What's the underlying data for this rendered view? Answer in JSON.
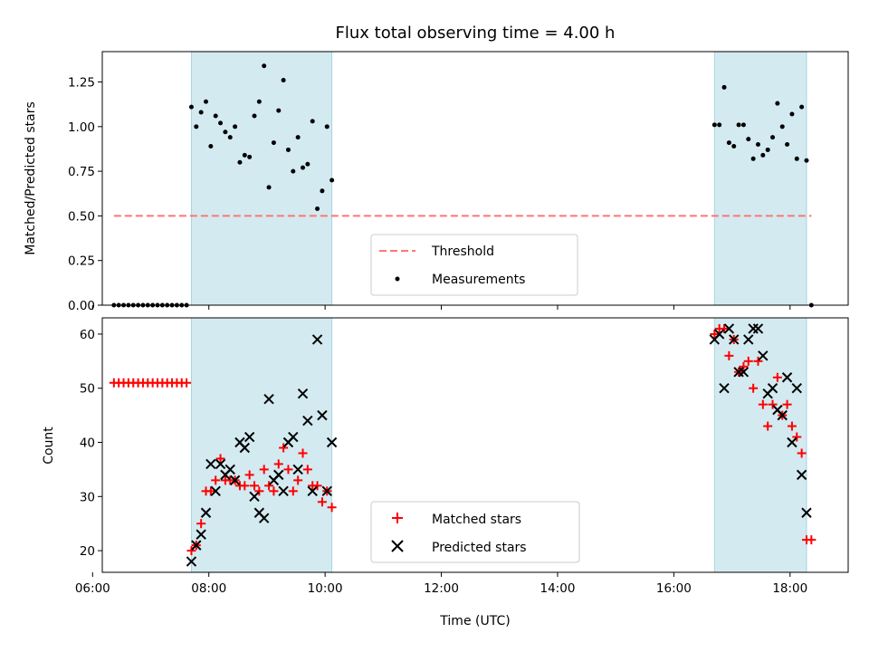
{
  "chart_data": [
    {
      "type": "scatter",
      "title": "Flux total observing time = 4.00 h",
      "ylabel": "Matched/Predicted stars",
      "xlabel": "",
      "xlim": [
        "06:10",
        "19:00"
      ],
      "ylim": [
        0,
        1.42
      ],
      "yticks": [
        0.0,
        0.25,
        0.5,
        0.75,
        1.0,
        1.25
      ],
      "ytick_labels": [
        "0.00",
        "0.25",
        "0.50",
        "0.75",
        "1.00",
        "1.25"
      ],
      "shaded_spans": [
        [
          "07:42",
          "10:07"
        ],
        [
          "16:42",
          "18:17"
        ]
      ],
      "span_color": "#d3eaf1",
      "threshold": {
        "name": "Threshold",
        "y": 0.5,
        "x_range": [
          "06:22",
          "18:22"
        ],
        "color": "#ff7575"
      },
      "legend": [
        "Threshold",
        "Measurements"
      ],
      "legend_position": "bottom-center",
      "series": [
        {
          "name": "Measurements",
          "color": "#000000",
          "points": [
            [
              "06:22",
              0
            ],
            [
              "06:27",
              0
            ],
            [
              "06:32",
              0
            ],
            [
              "06:37",
              0
            ],
            [
              "06:42",
              0
            ],
            [
              "06:47",
              0
            ],
            [
              "06:52",
              0
            ],
            [
              "06:57",
              0
            ],
            [
              "07:02",
              0
            ],
            [
              "07:07",
              0
            ],
            [
              "07:12",
              0
            ],
            [
              "07:17",
              0
            ],
            [
              "07:22",
              0
            ],
            [
              "07:27",
              0
            ],
            [
              "07:32",
              0
            ],
            [
              "07:37",
              0
            ],
            [
              "07:42",
              1.11
            ],
            [
              "07:47",
              1.0
            ],
            [
              "07:52",
              1.08
            ],
            [
              "07:57",
              1.14
            ],
            [
              "08:02",
              0.89
            ],
            [
              "08:07",
              1.06
            ],
            [
              "08:12",
              1.02
            ],
            [
              "08:17",
              0.97
            ],
            [
              "08:22",
              0.94
            ],
            [
              "08:27",
              1.0
            ],
            [
              "08:32",
              0.8
            ],
            [
              "08:37",
              0.84
            ],
            [
              "08:42",
              0.83
            ],
            [
              "08:47",
              1.06
            ],
            [
              "08:52",
              1.14
            ],
            [
              "08:57",
              1.34
            ],
            [
              "09:02",
              0.66
            ],
            [
              "09:07",
              0.91
            ],
            [
              "09:12",
              1.09
            ],
            [
              "09:17",
              1.26
            ],
            [
              "09:22",
              0.87
            ],
            [
              "09:27",
              0.75
            ],
            [
              "09:32",
              0.94
            ],
            [
              "09:37",
              0.77
            ],
            [
              "09:42",
              0.79
            ],
            [
              "09:47",
              1.03
            ],
            [
              "09:52",
              0.54
            ],
            [
              "09:57",
              0.64
            ],
            [
              "10:02",
              1.0
            ],
            [
              "10:07",
              0.7
            ],
            [
              "16:42",
              1.01
            ],
            [
              "16:47",
              1.01
            ],
            [
              "16:52",
              1.22
            ],
            [
              "16:57",
              0.91
            ],
            [
              "17:02",
              0.89
            ],
            [
              "17:07",
              1.01
            ],
            [
              "17:12",
              1.01
            ],
            [
              "17:17",
              0.93
            ],
            [
              "17:22",
              0.82
            ],
            [
              "17:27",
              0.9
            ],
            [
              "17:32",
              0.84
            ],
            [
              "17:37",
              0.87
            ],
            [
              "17:42",
              0.94
            ],
            [
              "17:47",
              1.13
            ],
            [
              "17:52",
              1.0
            ],
            [
              "17:57",
              0.9
            ],
            [
              "18:02",
              1.07
            ],
            [
              "18:07",
              0.82
            ],
            [
              "18:12",
              1.11
            ],
            [
              "18:17",
              0.81
            ],
            [
              "18:22",
              0
            ]
          ]
        }
      ]
    },
    {
      "type": "scatter",
      "title": "",
      "ylabel": "Count",
      "xlabel": "Time (UTC)",
      "xlim": [
        "06:10",
        "19:00"
      ],
      "xticks": [
        "06:00",
        "08:00",
        "10:00",
        "12:00",
        "14:00",
        "16:00",
        "18:00"
      ],
      "ylim": [
        16,
        63
      ],
      "yticks": [
        20,
        30,
        40,
        50,
        60
      ],
      "ytick_labels": [
        "20",
        "30",
        "40",
        "50",
        "60"
      ],
      "shaded_spans": [
        [
          "07:42",
          "10:07"
        ],
        [
          "16:42",
          "18:17"
        ]
      ],
      "span_color": "#d3eaf1",
      "legend": [
        "Matched stars",
        "Predicted stars"
      ],
      "legend_position": "bottom-center",
      "series": [
        {
          "name": "Matched stars",
          "marker": "+",
          "color": "#ff0000",
          "points": [
            [
              "06:22",
              51
            ],
            [
              "06:27",
              51
            ],
            [
              "06:32",
              51
            ],
            [
              "06:37",
              51
            ],
            [
              "06:42",
              51
            ],
            [
              "06:47",
              51
            ],
            [
              "06:52",
              51
            ],
            [
              "06:57",
              51
            ],
            [
              "07:02",
              51
            ],
            [
              "07:07",
              51
            ],
            [
              "07:12",
              51
            ],
            [
              "07:17",
              51
            ],
            [
              "07:22",
              51
            ],
            [
              "07:27",
              51
            ],
            [
              "07:32",
              51
            ],
            [
              "07:37",
              51
            ],
            [
              "07:42",
              20
            ],
            [
              "07:47",
              21
            ],
            [
              "07:52",
              25
            ],
            [
              "07:57",
              31
            ],
            [
              "08:02",
              31
            ],
            [
              "08:07",
              33
            ],
            [
              "08:12",
              37
            ],
            [
              "08:17",
              33
            ],
            [
              "08:22",
              33
            ],
            [
              "08:27",
              33
            ],
            [
              "08:32",
              32
            ],
            [
              "08:37",
              32
            ],
            [
              "08:42",
              34
            ],
            [
              "08:47",
              32
            ],
            [
              "08:52",
              31
            ],
            [
              "08:57",
              35
            ],
            [
              "09:02",
              32
            ],
            [
              "09:07",
              31
            ],
            [
              "09:12",
              36
            ],
            [
              "09:17",
              39
            ],
            [
              "09:22",
              35
            ],
            [
              "09:27",
              31
            ],
            [
              "09:32",
              33
            ],
            [
              "09:37",
              38
            ],
            [
              "09:42",
              35
            ],
            [
              "09:47",
              32
            ],
            [
              "09:52",
              32
            ],
            [
              "09:57",
              29
            ],
            [
              "10:02",
              31
            ],
            [
              "10:07",
              28
            ],
            [
              "16:42",
              60
            ],
            [
              "16:47",
              61
            ],
            [
              "16:52",
              61
            ],
            [
              "16:57",
              56
            ],
            [
              "17:02",
              59
            ],
            [
              "17:07",
              53
            ],
            [
              "17:12",
              54
            ],
            [
              "17:17",
              55
            ],
            [
              "17:22",
              50
            ],
            [
              "17:27",
              55
            ],
            [
              "17:32",
              47
            ],
            [
              "17:37",
              43
            ],
            [
              "17:42",
              47
            ],
            [
              "17:47",
              52
            ],
            [
              "17:52",
              45
            ],
            [
              "17:57",
              47
            ],
            [
              "18:02",
              43
            ],
            [
              "18:07",
              41
            ],
            [
              "18:12",
              38
            ],
            [
              "18:17",
              22
            ],
            [
              "18:22",
              22
            ]
          ]
        },
        {
          "name": "Predicted stars",
          "marker": "x",
          "color": "#000000",
          "points": [
            [
              "07:42",
              18
            ],
            [
              "07:47",
              21
            ],
            [
              "07:52",
              23
            ],
            [
              "07:57",
              27
            ],
            [
              "08:02",
              36
            ],
            [
              "08:07",
              31
            ],
            [
              "08:12",
              36
            ],
            [
              "08:17",
              34
            ],
            [
              "08:22",
              35
            ],
            [
              "08:27",
              33
            ],
            [
              "08:32",
              40
            ],
            [
              "08:37",
              39
            ],
            [
              "08:42",
              41
            ],
            [
              "08:47",
              30
            ],
            [
              "08:52",
              27
            ],
            [
              "08:57",
              26
            ],
            [
              "09:02",
              48
            ],
            [
              "09:07",
              33
            ],
            [
              "09:12",
              34
            ],
            [
              "09:17",
              31
            ],
            [
              "09:22",
              40
            ],
            [
              "09:27",
              41
            ],
            [
              "09:32",
              35
            ],
            [
              "09:37",
              49
            ],
            [
              "09:42",
              44
            ],
            [
              "09:47",
              31
            ],
            [
              "09:52",
              59
            ],
            [
              "09:57",
              45
            ],
            [
              "10:02",
              31
            ],
            [
              "10:07",
              40
            ],
            [
              "16:42",
              59
            ],
            [
              "16:47",
              60
            ],
            [
              "16:52",
              50
            ],
            [
              "16:57",
              61
            ],
            [
              "17:02",
              59
            ],
            [
              "17:07",
              53
            ],
            [
              "17:12",
              53
            ],
            [
              "17:17",
              59
            ],
            [
              "17:22",
              61
            ],
            [
              "17:27",
              61
            ],
            [
              "17:32",
              56
            ],
            [
              "17:37",
              49
            ],
            [
              "17:42",
              50
            ],
            [
              "17:47",
              46
            ],
            [
              "17:52",
              45
            ],
            [
              "17:57",
              52
            ],
            [
              "18:02",
              40
            ],
            [
              "18:07",
              50
            ],
            [
              "18:12",
              34
            ],
            [
              "18:17",
              27
            ]
          ]
        }
      ]
    }
  ]
}
